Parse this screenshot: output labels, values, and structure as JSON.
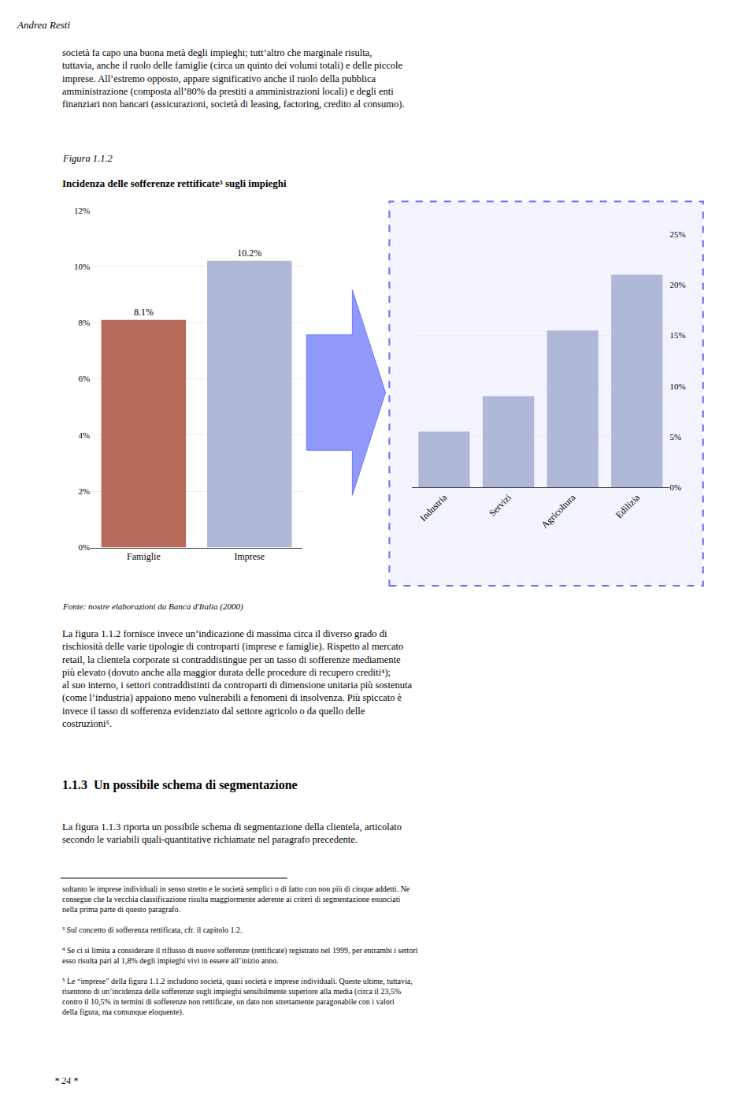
{
  "chart_data": [
    {
      "type": "bar",
      "subtitle": "Figura 1.1.2",
      "title": "Incidenza delle sofferenze rettificate³ sugli impieghi",
      "categories": [
        "Famiglie",
        "Imprese"
      ],
      "values": [
        8.1,
        10.2
      ],
      "value_labels": [
        "8.1%",
        "10.2%"
      ],
      "data_labels": true,
      "colors": [
        "#b56a5a",
        "#b0b8d8"
      ],
      "ylim": [
        0,
        12
      ],
      "yticks": [
        {
          "value": 0,
          "label": "0%"
        },
        {
          "value": 2,
          "label": "2%"
        },
        {
          "value": 4,
          "label": "4%"
        },
        {
          "value": 6,
          "label": "6%"
        },
        {
          "value": 8,
          "label": "8%"
        },
        {
          "value": 10,
          "label": "10%"
        },
        {
          "value": 12,
          "label": "12%"
        }
      ],
      "grid": true
    },
    {
      "type": "bar",
      "categories": [
        "Industria",
        "Servizi",
        "Agricoltura",
        "Edilizia"
      ],
      "values": [
        5.5,
        9.0,
        15.5,
        21.0
      ],
      "color": "#b0b8d8",
      "ylim": [
        0,
        25
      ],
      "yticks": [
        {
          "value": 0,
          "label": "0%"
        },
        {
          "value": 5,
          "label": "5%"
        },
        {
          "value": 10,
          "label": "10%"
        },
        {
          "value": 15,
          "label": "15%"
        },
        {
          "value": 20,
          "label": "20%"
        },
        {
          "value": 25,
          "label": "25%"
        }
      ],
      "grid": true
    }
  ],
  "header": "Andrea Resti",
  "top_text": "società fa capo una buona metà degli impieghi; tutt’altro che marginale risulta,\ntuttavia, anche il ruolo delle famiglie (circa un quinto dei volumi totali) e delle piccole\nimprese. All’estremo opposto, appare significativo anche il ruolo della pubblica\namministrazione (composta all’80% da prestiti a amministrazioni locali) e degli enti\nfinanziari non bancari (assicurazioni, società di leasing, factoring, credito al consumo).",
  "source": "Fonte: nostre elaborazioni da Banca d'Italia (2000)",
  "body_text_1": "La figura 1.1.2 fornisce invece un’indicazione di massima circa il diverso grado di\nrischiosità delle varie tipologie di controparti (imprese e famiglie). Rispetto al mercato\nretail, la clientela corporate si contraddistingue per un tasso di sofferenze mediamente\npiù elevato (dovuto anche alla maggior durata delle procedure di recupero crediti⁴);\nal suo interno, i settori contraddistinti da controparti di dimensione unitaria più sostenuta\n(come l’industria) appaiono meno vulnerabili a fenomeni di insolvenza. Più spiccato è\ninvece il tasso di sofferenza evidenziato dal settore agricolo o da quello delle\ncostruzioni⁵.",
  "section_title": "1.1.3  Un possibile schema di segmentazione",
  "body_text_2": "La figura 1.1.3 riporta un possibile schema di segmentazione della clientela, articolato\nsecondo le variabili quali-quantitative richiamate nel paragrafo precedente.",
  "footnotes": [
    "soltanto le imprese individuali in senso stretto e le società semplici o di fatto con non più di cinque addetti. Ne\nconsegue che la vecchia classificazione risulta maggiormente aderente ai criteri di segmentazione enunciati\nnella prima parte di questo paragrafo.",
    "³ Sul concetto di sofferenza rettificata, cfr. il capitolo 1.2.",
    "⁴ Se ci si limita a considerare il riflusso di nuove sofferenze (rettificate) registrato nel 1999, per entrambi i settori\nesso risulta pari al 1,8% degli impieghi vivi in essere all’inizio anno.",
    "⁵ Le “imprese” della figura 1.1.2 includono società, quasi società e imprese individuali. Queste ultime, tuttavia,\nrisentono di un’incidenza delle sofferenze sugli impieghi sensibilmente superiore alla media (circa il 23,5%\ncontro il 10,5% in termini di sofferenze non rettificate, un dato non strettamente paragonabile con i valori\ndella figura, ma comunque eloquente)."
  ],
  "page_label": "* 24 *"
}
